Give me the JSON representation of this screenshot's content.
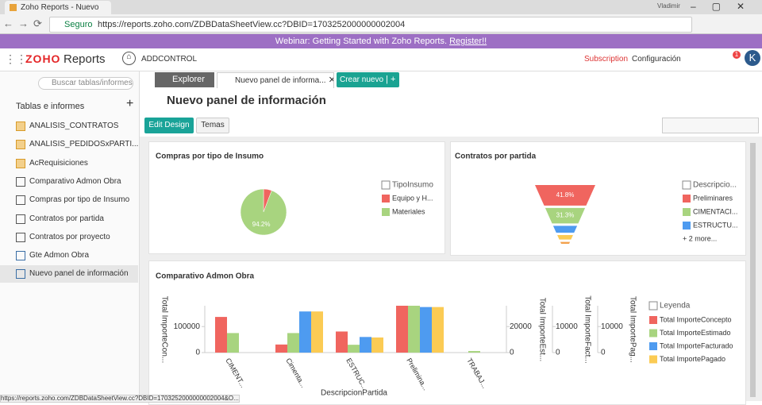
{
  "browser": {
    "tab_title": "Zoho Reports - Nuevo p",
    "user": "Vladimir",
    "secure": "Seguro",
    "url": "https://reports.zoho.com/ZDBDataSheetView.cc?DBID=1703252000000002004",
    "status_url": "https://reports.zoho.com/ZDBDataSheetView.cc?DBID=1703252000000002004&O..."
  },
  "banner": {
    "text": "Webinar: Getting Started with Zoho Reports.",
    "link": "Register!!"
  },
  "header": {
    "logo": "ZOHO",
    "product": "Reports",
    "workspace": "ADDCONTROL",
    "subscription": "Subscription",
    "settings": "Configuración",
    "notifications": "1",
    "avatar": "K"
  },
  "sidebar": {
    "search": "Buscar tablas/informes",
    "section": "Tablas e informes",
    "items": [
      {
        "label": "ANALISIS_CONTRATOS",
        "icon": "table"
      },
      {
        "label": "ANALISIS_PEDIDOSxPARTI...",
        "icon": "table"
      },
      {
        "label": "AcRequisiciones",
        "icon": "table"
      },
      {
        "label": "Comparativo Admon Obra",
        "icon": "chart"
      },
      {
        "label": "Compras por tipo de Insumo",
        "icon": "chart"
      },
      {
        "label": "Contratos por partida",
        "icon": "chart"
      },
      {
        "label": "Contratos por proyecto",
        "icon": "chart"
      },
      {
        "label": "Gte Admon Obra",
        "icon": "dashboard"
      },
      {
        "label": "Nuevo panel de información",
        "icon": "dashboard",
        "selected": true
      }
    ]
  },
  "tabs": {
    "explorer": "Explorer",
    "active": "Nuevo panel de informa...",
    "create": "Crear nuevo"
  },
  "page": {
    "title": "Nuevo panel de información",
    "edit": "Edit Design",
    "themes": "Temas"
  },
  "chart_data": [
    {
      "type": "pie",
      "title": "Compras por tipo de Insumo",
      "legend_title": "TipoInsumo",
      "categories": [
        "Equipo y H...",
        "Materiales"
      ],
      "values": [
        5.8,
        94.2
      ],
      "value_labels": [
        null,
        "94.2%"
      ],
      "colors": [
        "#f0655f",
        "#a8d47f"
      ]
    },
    {
      "type": "funnel",
      "title": "Contratos por partida",
      "legend_title": "Descripcio...",
      "categories": [
        "Preliminares",
        "CIMENTACI...",
        "ESTRUCTU...",
        null,
        null
      ],
      "values": [
        41.8,
        31.3,
        14,
        9,
        3.9
      ],
      "value_labels": [
        "41.8%",
        "31.3%",
        null,
        null,
        null
      ],
      "colors": [
        "#f0655f",
        "#a8d47f",
        "#4e9bf0",
        "#fbcb54",
        "#f3a14c"
      ],
      "more": "+ 2 more..."
    },
    {
      "type": "bar",
      "title": "Comparativo Admon Obra",
      "xlabel": "DescripcionPartida",
      "legend_title": "Leyenda",
      "categories": [
        "CIMENT...",
        "Cimenta...",
        "ESTRUC...",
        "Prelimina...",
        "TRABAJ..."
      ],
      "axes": [
        {
          "label": "Total ImporteCon...",
          "lim": [
            0,
            180000
          ],
          "ticks": [
            0,
            100000
          ]
        },
        {
          "label": "Total ImporteEst...",
          "lim": [
            0,
            36000
          ],
          "ticks": [
            0,
            20000
          ]
        },
        {
          "label": "Total ImporteFact...",
          "lim": [
            0,
            18000
          ],
          "ticks": [
            0,
            10000
          ]
        },
        {
          "label": "Total ImportePag...",
          "lim": [
            0,
            18000
          ],
          "ticks": [
            0,
            10000
          ]
        }
      ],
      "series": [
        {
          "name": "Total ImporteConcepto",
          "color": "#f0655f",
          "axis": 0,
          "values": [
            137000,
            31000,
            81000,
            180000,
            0
          ]
        },
        {
          "name": "Total ImporteEstimado",
          "color": "#a8d47f",
          "axis": 1,
          "values": [
            15000,
            15000,
            6000,
            36000,
            1200
          ]
        },
        {
          "name": "Total ImporteFacturado",
          "color": "#4e9bf0",
          "axis": 2,
          "values": [
            0,
            15800,
            6000,
            17500,
            0
          ]
        },
        {
          "name": "Total ImportePagado",
          "color": "#fbcb54",
          "axis": 3,
          "values": [
            0,
            15800,
            5800,
            17500,
            0
          ]
        }
      ]
    }
  ]
}
